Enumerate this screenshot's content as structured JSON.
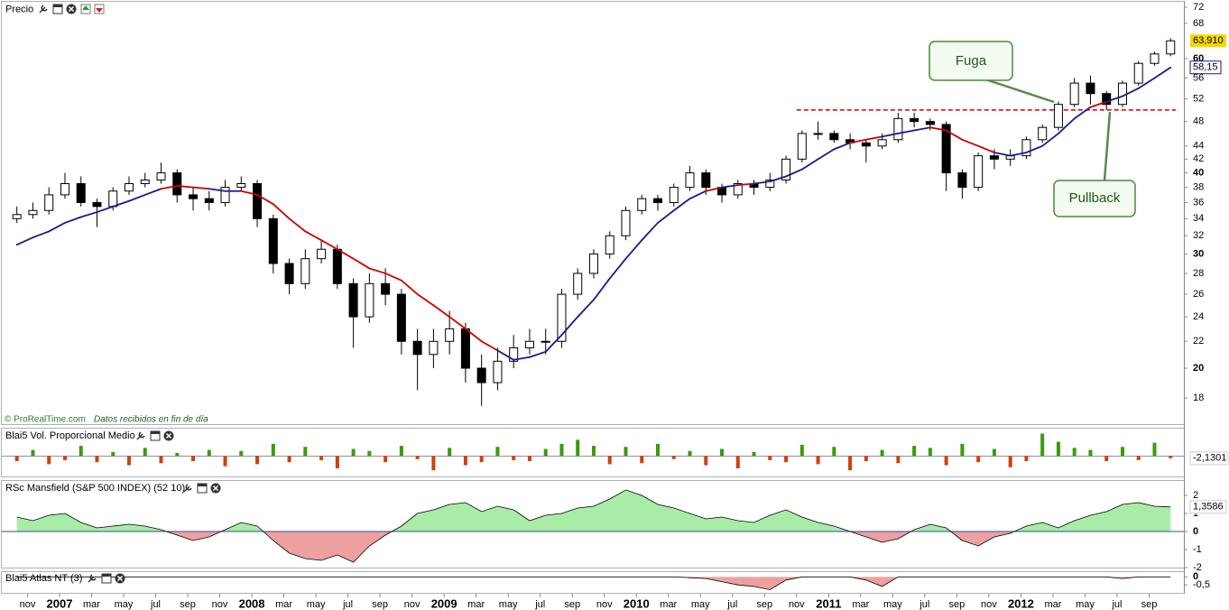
{
  "chart_data": [
    {
      "type": "candlestick",
      "title": "Precio",
      "x": [
        "2006-10",
        "2006-11",
        "2006-12",
        "2007-01",
        "2007-02",
        "2007-03",
        "2007-04",
        "2007-05",
        "2007-06",
        "2007-07",
        "2007-08",
        "2007-09",
        "2007-10",
        "2007-11",
        "2007-12",
        "2008-01",
        "2008-02",
        "2008-03",
        "2008-04",
        "2008-05",
        "2008-06",
        "2008-07",
        "2008-08",
        "2008-09",
        "2008-10",
        "2008-11",
        "2008-12",
        "2009-01",
        "2009-02",
        "2009-03",
        "2009-04",
        "2009-05",
        "2009-06",
        "2009-07",
        "2009-08",
        "2009-09",
        "2009-10",
        "2009-11",
        "2009-12",
        "2010-01",
        "2010-02",
        "2010-03",
        "2010-04",
        "2010-05",
        "2010-06",
        "2010-07",
        "2010-08",
        "2010-09",
        "2010-10",
        "2010-11",
        "2010-12",
        "2011-01",
        "2011-02",
        "2011-03",
        "2011-04",
        "2011-05",
        "2011-06",
        "2011-07",
        "2011-08",
        "2011-09",
        "2011-10",
        "2011-11",
        "2011-12",
        "2012-01",
        "2012-02",
        "2012-03",
        "2012-04",
        "2012-05",
        "2012-06",
        "2012-07",
        "2012-08",
        "2012-09",
        "2012-10"
      ],
      "open": [
        34,
        34.5,
        35,
        37,
        38.5,
        36,
        35.5,
        37.5,
        38.5,
        39,
        40,
        37,
        36.5,
        36,
        38,
        38.5,
        34,
        29,
        27,
        29.5,
        30.5,
        27,
        24,
        27,
        26,
        22,
        21,
        22,
        23,
        20,
        19,
        20.5,
        21.5,
        22,
        22,
        26,
        28,
        30,
        32,
        35,
        36.5,
        36,
        38,
        40,
        38,
        37,
        38.5,
        38,
        39,
        42,
        46,
        46,
        45,
        44.5,
        44,
        45,
        48.5,
        48,
        47.5,
        40,
        38,
        42.5,
        42,
        42.5,
        45,
        47,
        51,
        55,
        53,
        51,
        55,
        59,
        61
      ],
      "high": [
        35.5,
        36,
        38,
        40,
        39.5,
        36.5,
        38,
        39.5,
        40,
        41.5,
        40.5,
        38,
        37.5,
        39,
        39.5,
        39,
        34.5,
        29.5,
        30.5,
        31.5,
        31,
        27.5,
        28,
        28.5,
        26.5,
        23,
        23,
        24.5,
        23.5,
        21,
        21.5,
        22.5,
        23,
        23,
        26.5,
        28.5,
        30.5,
        32.5,
        35.5,
        37,
        37,
        38.5,
        41,
        40.5,
        38.5,
        39,
        39,
        40,
        42.5,
        46.5,
        48,
        46.5,
        46,
        45,
        46,
        49.5,
        49.5,
        48.5,
        48,
        40.5,
        43,
        43.5,
        43.5,
        45.5,
        47.5,
        51.5,
        56,
        56.5,
        53.5,
        55.5,
        59.5,
        61.5,
        64.5
      ],
      "low": [
        33.5,
        34,
        34.5,
        36.5,
        35.5,
        33,
        35,
        37,
        38,
        38.5,
        36,
        35,
        35,
        35.5,
        37.5,
        33,
        28,
        26,
        26.5,
        29,
        26.5,
        21.5,
        23.5,
        25,
        21,
        18.5,
        20,
        21,
        19,
        17.5,
        18.5,
        20,
        21,
        21,
        21.5,
        25.5,
        27.5,
        29.5,
        31.5,
        34.5,
        35,
        35.5,
        37.5,
        37,
        36,
        36.5,
        37,
        37.5,
        38.5,
        41.5,
        45,
        44.5,
        43.5,
        41.5,
        43.5,
        44.5,
        47,
        46.5,
        37.5,
        36.5,
        37.5,
        40.5,
        41,
        42,
        44.5,
        46.5,
        50.5,
        51,
        50,
        50.5,
        54.5,
        58.5,
        60.5
      ],
      "close": [
        34.5,
        35,
        37,
        38.5,
        36,
        35.5,
        37.5,
        38.5,
        39,
        40,
        37,
        36.5,
        36,
        38,
        38.5,
        34,
        29,
        27,
        29.5,
        30.5,
        27,
        24,
        27,
        26,
        22,
        21,
        22,
        23,
        20,
        19,
        20.5,
        21.5,
        22,
        22,
        26,
        28,
        30,
        32,
        35,
        36.5,
        36,
        38,
        40,
        38,
        37,
        38.5,
        38,
        39,
        42,
        46,
        46,
        45,
        44.5,
        44,
        45,
        48.5,
        48,
        47.5,
        40,
        38,
        42.5,
        42,
        42.5,
        45,
        47,
        51,
        55,
        53,
        51,
        55,
        59,
        61,
        63.91
      ],
      "close_label": "63,910",
      "up_color": "#ffffff",
      "down_color": "#000000",
      "label_color": "#f5d800",
      "moving_average": {
        "values": [
          31,
          31.8,
          32.5,
          33.5,
          34.2,
          34.8,
          35.5,
          36.2,
          37,
          37.8,
          38.2,
          38,
          37.8,
          37.5,
          37.5,
          37,
          35.8,
          34,
          32.5,
          31.5,
          30.5,
          29.5,
          28.5,
          28,
          27.3,
          26,
          25,
          24,
          23,
          22,
          21.3,
          20.6,
          20.8,
          21.2,
          22.5,
          24,
          25.5,
          27.5,
          29.5,
          31.5,
          33.5,
          35,
          36.5,
          37.5,
          38,
          38.3,
          38.5,
          38.8,
          39.5,
          40.5,
          42,
          43.5,
          44.5,
          45,
          45.5,
          46,
          46.5,
          47,
          46.5,
          45,
          44,
          43,
          42.5,
          43,
          44,
          46,
          48.5,
          50.5,
          51.5,
          52.5,
          54,
          56,
          58.15
        ],
        "label": "58,15",
        "color": "#1a1a8c",
        "below_color": "#cc0000"
      },
      "resistance": {
        "value": 50,
        "from": "2010-11",
        "to": "2012-10",
        "color": "#cc0000"
      },
      "annotations": [
        {
          "text": "Fuga"
        },
        {
          "text": "Pullback"
        }
      ],
      "ylim": [
        16.4,
        73.4
      ],
      "log_scale": true,
      "yticks": [
        18,
        20,
        22,
        24,
        26,
        28,
        30,
        32,
        34,
        36,
        38,
        40,
        42,
        44,
        48,
        52,
        56,
        60,
        68,
        72
      ],
      "xlim": [
        "2006-10",
        "2012-11"
      ],
      "xticks": [
        {
          "value": "2006-11",
          "label": "nov"
        },
        {
          "value": "2007-01",
          "label": "2007"
        },
        {
          "value": "2007-03",
          "label": "mar"
        },
        {
          "value": "2007-05",
          "label": "may"
        },
        {
          "value": "2007-07",
          "label": "jul"
        },
        {
          "value": "2007-09",
          "label": "sep"
        },
        {
          "value": "2007-11",
          "label": "nov"
        },
        {
          "value": "2008-01",
          "label": "2008"
        },
        {
          "value": "2008-03",
          "label": "mar"
        },
        {
          "value": "2008-05",
          "label": "may"
        },
        {
          "value": "2008-07",
          "label": "jul"
        },
        {
          "value": "2008-09",
          "label": "sep"
        },
        {
          "value": "2008-11",
          "label": "nov"
        },
        {
          "value": "2009-01",
          "label": "2009"
        },
        {
          "value": "2009-03",
          "label": "mar"
        },
        {
          "value": "2009-05",
          "label": "may"
        },
        {
          "value": "2009-07",
          "label": "jul"
        },
        {
          "value": "2009-09",
          "label": "sep"
        },
        {
          "value": "2009-11",
          "label": "nov"
        },
        {
          "value": "2010-01",
          "label": "2010"
        },
        {
          "value": "2010-03",
          "label": "mar"
        },
        {
          "value": "2010-05",
          "label": "may"
        },
        {
          "value": "2010-07",
          "label": "jul"
        },
        {
          "value": "2010-09",
          "label": "sep"
        },
        {
          "value": "2010-11",
          "label": "nov"
        },
        {
          "value": "2011-01",
          "label": "2011"
        },
        {
          "value": "2011-03",
          "label": "mar"
        },
        {
          "value": "2011-05",
          "label": "may"
        },
        {
          "value": "2011-07",
          "label": "jul"
        },
        {
          "value": "2011-09",
          "label": "sep"
        },
        {
          "value": "2011-11",
          "label": "nov"
        },
        {
          "value": "2012-01",
          "label": "2012"
        },
        {
          "value": "2012-03",
          "label": "mar"
        },
        {
          "value": "2012-05",
          "label": "may"
        },
        {
          "value": "2012-07",
          "label": "jul"
        },
        {
          "value": "2012-09",
          "label": "sep"
        }
      ],
      "source": "© ProRealTime.com",
      "note": "Datos recibidos en fin de día"
    },
    {
      "type": "bar",
      "title": "Blai5 Vol. Proporcional Medio",
      "values": [
        -5,
        6,
        -8,
        -4,
        10,
        -6,
        4,
        -9,
        8,
        -7,
        3,
        -5,
        6,
        -10,
        5,
        -8,
        12,
        -6,
        9,
        -4,
        -12,
        7,
        5,
        -6,
        10,
        -3,
        -14,
        8,
        -9,
        -6,
        9,
        -4,
        -5,
        7,
        12,
        16,
        10,
        -8,
        9,
        -7,
        12,
        -3,
        5,
        -9,
        7,
        -12,
        4,
        -4,
        -6,
        11,
        -8,
        9,
        -14,
        -5,
        6,
        -7,
        10,
        8,
        -9,
        12,
        -6,
        7,
        -11,
        -5,
        22,
        14,
        8,
        6,
        -5,
        9,
        -4,
        13,
        -2.1301
      ],
      "last_label": "-2,1301",
      "positive_color": "#3a9a10",
      "negative_color": "#d04010",
      "ylim": [
        -20,
        26
      ]
    },
    {
      "type": "area",
      "title": "RSc Mansfield (S&P 500 INDEX) (52 10)",
      "values": [
        0.8,
        0.6,
        0.9,
        1.0,
        0.5,
        0.2,
        0.3,
        0.4,
        0.3,
        0.1,
        -0.2,
        -0.5,
        -0.3,
        0.1,
        0.5,
        0.3,
        -0.5,
        -1.2,
        -1.5,
        -1.6,
        -1.3,
        -1.7,
        -0.8,
        -0.2,
        0.3,
        1.0,
        1.2,
        1.5,
        1.6,
        1.1,
        1.4,
        1.2,
        0.6,
        0.9,
        1.0,
        1.3,
        1.4,
        1.8,
        2.3,
        2.0,
        1.5,
        1.3,
        1.0,
        0.7,
        0.8,
        0.6,
        0.5,
        0.9,
        1.2,
        0.8,
        0.5,
        0.3,
        0.0,
        -0.3,
        -0.6,
        -0.4,
        0.1,
        0.4,
        0.2,
        -0.5,
        -0.8,
        -0.3,
        -0.1,
        0.3,
        0.5,
        0.2,
        0.6,
        0.9,
        1.1,
        1.5,
        1.6,
        1.4,
        1.3586
      ],
      "last_label": "1,3586",
      "positive_color": "#a8eca8",
      "negative_color": "#eea0a0",
      "zero_color": "#3050a0",
      "ylim": [
        -2,
        2.8
      ],
      "yticks": [
        2,
        1,
        0,
        -1,
        -2
      ]
    },
    {
      "type": "area",
      "title": "Blai5 Atlas NT (3)",
      "values": [
        0,
        0,
        0,
        0,
        0,
        0,
        0,
        0,
        0,
        0,
        0,
        0,
        0,
        0,
        0,
        0,
        0,
        0,
        0,
        0,
        0,
        0,
        0,
        0,
        0,
        0,
        0,
        0,
        0,
        0,
        0,
        0,
        0,
        0,
        0,
        0,
        0,
        0,
        0,
        0,
        0,
        0,
        -0.05,
        -0.1,
        -0.3,
        -0.5,
        -0.6,
        -0.8,
        -0.2,
        0,
        0,
        0,
        0,
        -0.2,
        -0.6,
        0,
        0,
        0,
        0,
        0,
        0,
        0,
        0,
        0,
        0,
        0,
        0,
        0,
        0,
        -0.1,
        0,
        0,
        0
      ],
      "positive_color": "#a8eca8",
      "negative_color": "#eea0a0",
      "ylim": [
        -1,
        0.3
      ],
      "yticks": [
        0,
        {
          "value": -0.5,
          "label": "-0,5"
        }
      ]
    }
  ]
}
